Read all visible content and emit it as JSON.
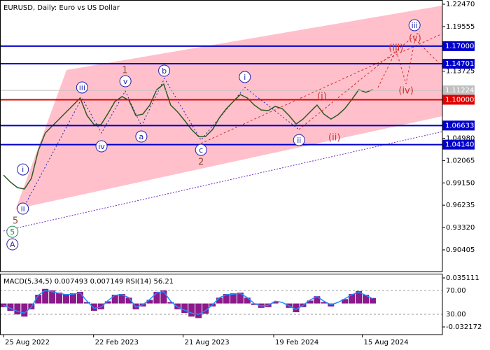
{
  "chart_data": [
    {
      "type": "line",
      "title": "EURUSD, Daily:  Euro vs US Dollar",
      "color": "#2d5a1e",
      "x": [
        "2022-08-25",
        "2022-09-08",
        "2022-09-22",
        "2022-10-06",
        "2022-10-20",
        "2022-11-03",
        "2022-11-17",
        "2022-12-01",
        "2022-12-15",
        "2022-12-29",
        "2023-01-12",
        "2023-01-26",
        "2023-02-09",
        "2023-02-23",
        "2023-03-09",
        "2023-03-23",
        "2023-04-06",
        "2023-04-20",
        "2023-05-04",
        "2023-05-18",
        "2023-06-01",
        "2023-06-15",
        "2023-06-29",
        "2023-07-13",
        "2023-07-27",
        "2023-08-10",
        "2023-08-24",
        "2023-09-07",
        "2023-09-21",
        "2023-10-05",
        "2023-10-19",
        "2023-11-02",
        "2023-11-16",
        "2023-11-30",
        "2023-12-14",
        "2023-12-28",
        "2024-01-11",
        "2024-01-25",
        "2024-02-08",
        "2024-02-22",
        "2024-03-07",
        "2024-03-21",
        "2024-04-04",
        "2024-04-18",
        "2024-05-02",
        "2024-05-16",
        "2024-05-30",
        "2024-06-13",
        "2024-06-27",
        "2024-07-11",
        "2024-07-25",
        "2024-08-08",
        "2024-08-22",
        "2024-09-05"
      ],
      "values": [
        1.0017,
        0.9926,
        0.9853,
        0.9835,
        0.9972,
        1.0337,
        1.0566,
        1.0657,
        1.0748,
        1.084,
        1.0931,
        1.1023,
        1.0794,
        1.0675,
        1.0675,
        1.0821,
        1.0977,
        1.1041,
        1.0995,
        1.0794,
        1.0812,
        1.0931,
        1.1132,
        1.1205,
        1.0931,
        1.084,
        1.073,
        1.0611,
        1.052,
        1.052,
        1.0611,
        1.0767,
        1.0885,
        1.0977,
        1.1068,
        1.1023,
        1.0931,
        1.0867,
        1.0858,
        1.0913,
        1.0885,
        1.0794,
        1.0684,
        1.0748,
        1.084,
        1.0931,
        1.0812,
        1.0748,
        1.0803,
        1.0885,
        1.1004,
        1.1132,
        1.1096,
        1.1132
      ],
      "xlim": [
        "2022-08-18",
        "2025-01-23"
      ],
      "xticks": [
        {
          "value": "2022-08-25",
          "label": "25 Aug 2022"
        },
        {
          "value": "2023-02-22",
          "label": "22 Feb 2023"
        },
        {
          "value": "2023-08-21",
          "label": "21 Aug 2023"
        },
        {
          "value": "2024-02-19",
          "label": "19 Feb 2024"
        },
        {
          "value": "2024-08-15",
          "label": "15 Aug 2024"
        }
      ],
      "ylim": [
        0.8757,
        1.2302
      ],
      "yticks": [
        {
          "value": 1.2247,
          "label": "1.22470"
        },
        {
          "value": 1.19555,
          "label": "1.19555"
        },
        {
          "value": 1.13725,
          "label": "1.13725"
        },
        {
          "value": 1.0498,
          "label": "1.04980"
        },
        {
          "value": 1.02065,
          "label": "1.02065"
        },
        {
          "value": 0.9915,
          "label": "0.99150"
        },
        {
          "value": 0.96235,
          "label": "0.96235"
        },
        {
          "value": 0.9332,
          "label": "0.93320"
        },
        {
          "value": 0.90405,
          "label": "0.90405"
        }
      ],
      "levels": [
        {
          "value": 1.17,
          "label": "1.17000",
          "color": "#0000cc"
        },
        {
          "value": 1.14701,
          "label": "1.14701",
          "color": "#0000cc"
        },
        {
          "value": 1.11224,
          "label": "1.11224",
          "color": "#c0c0c0"
        },
        {
          "value": 1.1,
          "label": "1.10000",
          "color": "#e00000"
        },
        {
          "value": 1.06633,
          "label": "1.06633",
          "color": "#0000cc"
        },
        {
          "value": 1.0414,
          "label": "1.04140",
          "color": "#0000cc"
        }
      ],
      "annotations": [
        {
          "text": "A",
          "x": "2022-09-12",
          "y": 0.9113,
          "color": "#3a2a8c",
          "circle": true
        },
        {
          "text": "5",
          "x": "2022-09-12",
          "y": 0.9277,
          "color": "#2e8b57",
          "circle": true
        },
        {
          "text": "5",
          "x": "2022-09-18",
          "y": 0.9423,
          "color": "#8b4a3a",
          "circle": false
        },
        {
          "text": "ii",
          "x": "2022-10-03",
          "y": 0.9579,
          "color": "#2020b0",
          "circle": true
        },
        {
          "text": "i",
          "x": "2022-10-03",
          "y": 1.009,
          "color": "#2020b0",
          "circle": true
        },
        {
          "text": "iii",
          "x": "2023-01-30",
          "y": 1.116,
          "color": "#2020b0",
          "circle": true
        },
        {
          "text": "iv",
          "x": "2023-03-10",
          "y": 1.0392,
          "color": "#2020b0",
          "circle": true
        },
        {
          "text": "v",
          "x": "2023-04-27",
          "y": 1.1242,
          "color": "#2020b0",
          "circle": true
        },
        {
          "text": "1",
          "x": "2023-04-26",
          "y": 1.1388,
          "color": "#8b4a3a",
          "circle": false
        },
        {
          "text": "a",
          "x": "2023-05-29",
          "y": 1.052,
          "color": "#2020b0",
          "circle": true
        },
        {
          "text": "b",
          "x": "2023-07-14",
          "y": 1.1379,
          "color": "#2020b0",
          "circle": true
        },
        {
          "text": "c",
          "x": "2023-09-26",
          "y": 1.0346,
          "color": "#2020b0",
          "circle": true
        },
        {
          "text": "2",
          "x": "2023-09-26",
          "y": 1.0191,
          "color": "#8b4a3a",
          "circle": false
        },
        {
          "text": "i",
          "x": "2023-12-23",
          "y": 1.1297,
          "color": "#2020b0",
          "circle": true
        },
        {
          "text": "ii",
          "x": "2024-04-10",
          "y": 1.0474,
          "color": "#2020b0",
          "circle": true
        },
        {
          "text": "(i)",
          "x": "2024-05-26",
          "y": 1.105,
          "color": "#d0312d",
          "circle": false
        },
        {
          "text": "(ii)",
          "x": "2024-06-20",
          "y": 1.0511,
          "color": "#d0312d",
          "circle": false
        },
        {
          "text": "(iii)",
          "x": "2024-10-22",
          "y": 1.168,
          "color": "#d0312d",
          "circle": false
        },
        {
          "text": "(iv)",
          "x": "2024-11-11",
          "y": 1.1123,
          "color": "#d0312d",
          "circle": false
        },
        {
          "text": "(v)",
          "x": "2024-11-29",
          "y": 1.1808,
          "color": "#d0312d",
          "circle": false
        },
        {
          "text": "iii",
          "x": "2024-11-28",
          "y": 1.1973,
          "color": "#2020b0",
          "circle": true
        }
      ]
    },
    {
      "type": "bar",
      "title": "MACD(5,34,5) 0.007493 0.007149 RSI(14) 56.21",
      "x": [
        "2022-08-25",
        "2022-09-08",
        "2022-09-22",
        "2022-10-06",
        "2022-10-20",
        "2022-11-03",
        "2022-11-17",
        "2022-12-01",
        "2022-12-15",
        "2022-12-29",
        "2023-01-12",
        "2023-01-26",
        "2023-02-09",
        "2023-02-23",
        "2023-03-09",
        "2023-03-23",
        "2023-04-06",
        "2023-04-20",
        "2023-05-04",
        "2023-05-18",
        "2023-06-01",
        "2023-06-15",
        "2023-06-29",
        "2023-07-13",
        "2023-07-27",
        "2023-08-10",
        "2023-08-24",
        "2023-09-07",
        "2023-09-21",
        "2023-10-05",
        "2023-10-19",
        "2023-11-02",
        "2023-11-16",
        "2023-11-30",
        "2023-12-14",
        "2023-12-28",
        "2024-01-11",
        "2024-01-25",
        "2024-02-08",
        "2024-02-22",
        "2024-03-07",
        "2024-03-21",
        "2024-04-04",
        "2024-04-18",
        "2024-05-02",
        "2024-05-16",
        "2024-05-30",
        "2024-06-13",
        "2024-06-27",
        "2024-07-11",
        "2024-07-25",
        "2024-08-08",
        "2024-08-22",
        "2024-09-05"
      ],
      "ylim": [
        -0.0427,
        0.0409
      ],
      "yticks": [
        0.035111,
        -0.032172
      ],
      "y2lim": [
        -4.1,
        98.2
      ],
      "y2ticks": [
        {
          "value": 70,
          "label": "70.00"
        },
        {
          "value": 30,
          "label": "30.00"
        }
      ],
      "series": [
        {
          "type": "bar",
          "color": "#8b1a8b",
          "values": [
            -0.005,
            -0.01,
            -0.015,
            -0.018,
            -0.008,
            0.012,
            0.02,
            0.018,
            0.015,
            0.013,
            0.014,
            0.016,
            0.002,
            -0.01,
            -0.008,
            0.003,
            0.012,
            0.013,
            0.008,
            -0.008,
            -0.004,
            0.005,
            0.016,
            0.018,
            0.002,
            -0.008,
            -0.013,
            -0.018,
            -0.02,
            -0.014,
            -0.004,
            0.008,
            0.013,
            0.014,
            0.015,
            0.008,
            -0.002,
            -0.006,
            -0.005,
            0.002,
            0.0,
            -0.006,
            -0.012,
            -0.005,
            0.004,
            0.01,
            0.002,
            -0.004,
            0.0,
            0.006,
            0.013,
            0.017,
            0.012,
            0.007493
          ]
        },
        {
          "type": "line",
          "axis": "y2",
          "color": "#1e90ff",
          "values": [
            45,
            40,
            35,
            32,
            42,
            62,
            70,
            68,
            65,
            63,
            64,
            66,
            52,
            40,
            42,
            53,
            62,
            63,
            58,
            42,
            46,
            55,
            66,
            68,
            52,
            42,
            37,
            32,
            30,
            36,
            46,
            58,
            63,
            64,
            65,
            58,
            48,
            44,
            45,
            52,
            50,
            44,
            38,
            45,
            54,
            60,
            52,
            46,
            50,
            56,
            63,
            67,
            62,
            56.21
          ]
        }
      ]
    }
  ]
}
